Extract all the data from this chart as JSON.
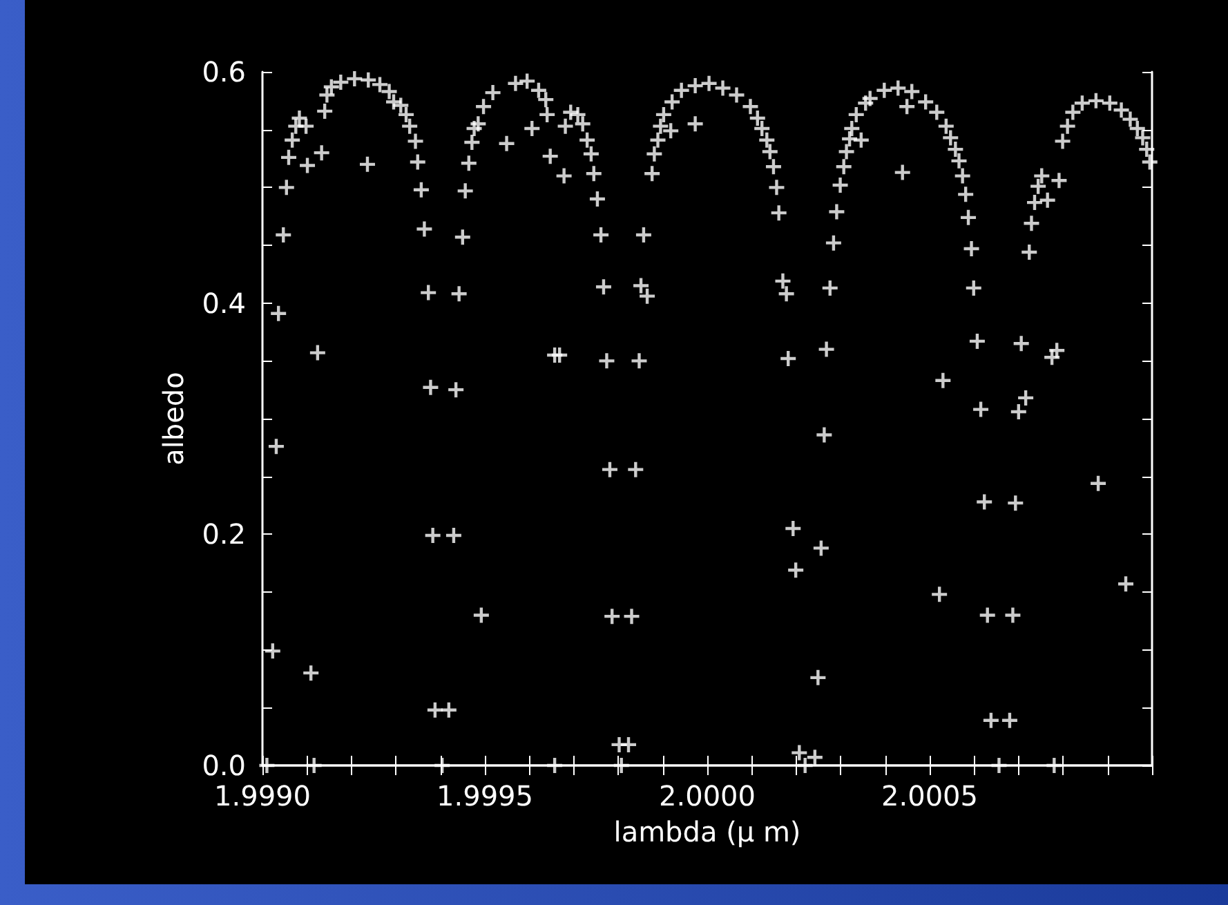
{
  "chart_data": {
    "type": "scatter",
    "xlabel": "lambda (μ m)",
    "ylabel": "albedo",
    "xlim": [
      1.999,
      2.001
    ],
    "ylim": [
      0,
      0.6
    ],
    "xticks": [
      {
        "value": 1.999,
        "label": "1.9990"
      },
      {
        "value": 1.9991,
        "label": null
      },
      {
        "value": 1.9992,
        "label": null
      },
      {
        "value": 1.9993,
        "label": null
      },
      {
        "value": 1.9994,
        "label": null
      },
      {
        "value": 1.9995,
        "label": "1.9995"
      },
      {
        "value": 1.9996,
        "label": null
      },
      {
        "value": 1.9997,
        "label": null
      },
      {
        "value": 1.9998,
        "label": null
      },
      {
        "value": 1.9999,
        "label": null
      },
      {
        "value": 2.0,
        "label": "2.0000"
      },
      {
        "value": 2.0001,
        "label": null
      },
      {
        "value": 2.0002,
        "label": null
      },
      {
        "value": 2.0003,
        "label": null
      },
      {
        "value": 2.0004,
        "label": null
      },
      {
        "value": 2.0005,
        "label": "2.0005"
      },
      {
        "value": 2.0006,
        "label": null
      },
      {
        "value": 2.0007,
        "label": null
      },
      {
        "value": 2.0008,
        "label": null
      },
      {
        "value": 2.0009,
        "label": null
      },
      {
        "value": 2.001,
        "label": null
      }
    ],
    "yticks": [
      {
        "value": 0,
        "label": "0.0"
      },
      {
        "value": 0.05,
        "label": null
      },
      {
        "value": 0.1,
        "label": null
      },
      {
        "value": 0.15,
        "label": null
      },
      {
        "value": 0.2,
        "label": "0.2"
      },
      {
        "value": 0.25,
        "label": null
      },
      {
        "value": 0.3,
        "label": null
      },
      {
        "value": 0.35,
        "label": null
      },
      {
        "value": 0.4,
        "label": "0.4"
      },
      {
        "value": 0.45,
        "label": null
      },
      {
        "value": 0.5,
        "label": null
      },
      {
        "value": 0.55,
        "label": null
      },
      {
        "value": 0.6,
        "label": "0.6"
      }
    ],
    "grid": false,
    "marker": "cross",
    "series": [
      {
        "color": "#ffffff",
        "x": [
          1.99901,
          1.999116,
          1.999023,
          1.999031,
          1.999036,
          1.999047,
          1.999054,
          1.999059,
          1.999067,
          1.999075,
          1.999083,
          1.999098,
          1.999101,
          1.999109,
          1.999124,
          1.999133,
          1.99914,
          1.999145,
          1.999155,
          1.999176,
          1.999207,
          1.999236,
          1.999238,
          1.999264,
          1.999285,
          1.999295,
          1.999311,
          1.999323,
          1.999331,
          1.999344,
          1.999349,
          1.999357,
          1.999364,
          1.999373,
          1.999378,
          1.999383,
          1.999388,
          1.999404,
          1.999419,
          1.99943,
          1.999435,
          1.999442,
          1.99945,
          1.999456,
          1.999464,
          1.999471,
          1.999476,
          1.999485,
          1.999492,
          1.999497,
          1.999518,
          1.999549,
          1.999569,
          1.999595,
          1.999606,
          1.999621,
          1.999637,
          1.99964,
          1.999647,
          1.999657,
          1.999657,
          1.999668,
          1.999678,
          1.999681,
          1.999693,
          1.999709,
          1.99972,
          1.99973,
          1.999739,
          1.999745,
          1.999753,
          1.999761,
          1.999767,
          1.999774,
          1.999781,
          1.999786,
          1.999802,
          1.999807,
          1.999823,
          1.99983,
          1.999839,
          1.999847,
          1.999851,
          1.999857,
          1.999865,
          1.999876,
          1.999881,
          1.999889,
          1.999895,
          1.999902,
          1.999918,
          1.999921,
          1.999942,
          1.999973,
          1.999973,
          2.000004,
          2.000035,
          2.000066,
          2.000097,
          2.000113,
          2.000123,
          2.000134,
          2.000141,
          2.000149,
          2.000156,
          2.000161,
          2.00017,
          2.000178,
          2.000182,
          2.000193,
          2.000199,
          2.000207,
          2.00022,
          2.000242,
          2.000249,
          2.000256,
          2.000263,
          2.000268,
          2.000276,
          2.000284,
          2.000291,
          2.000299,
          2.000307,
          2.000313,
          2.00032,
          2.000325,
          2.000335,
          2.000346,
          2.000356,
          2.000366,
          2.000398,
          2.000429,
          2.000439,
          2.000449,
          2.00046,
          2.000491,
          2.000516,
          2.000522,
          2.00053,
          2.000537,
          2.000547,
          2.000558,
          2.000566,
          2.000574,
          2.000581,
          2.000587,
          2.000594,
          2.000599,
          2.000607,
          2.000615,
          2.000623,
          2.00063,
          2.000638,
          2.000656,
          2.00068,
          2.000687,
          2.000693,
          2.0007,
          2.000706,
          2.000716,
          2.000724,
          2.000729,
          2.000736,
          2.000744,
          2.000752,
          2.000765,
          2.000775,
          2.00078,
          2.000786,
          2.000791,
          2.000799,
          2.00081,
          2.000822,
          2.000843,
          2.000874,
          2.000879,
          2.000905,
          2.000931,
          2.000941,
          2.000951,
          2.000967,
          2.000979,
          2.000988,
          2.000995
        ],
        "values": [
          0,
          0,
          0.099,
          0.276,
          0.391,
          0.459,
          0.5,
          0.526,
          0.541,
          0.553,
          0.56,
          0.553,
          0.519,
          0.08,
          0.357,
          0.53,
          0.566,
          0.58,
          0.587,
          0.591,
          0.594,
          0.52,
          0.593,
          0.589,
          0.583,
          0.574,
          0.571,
          0.563,
          0.553,
          0.54,
          0.522,
          0.498,
          0.464,
          0.409,
          0.327,
          0.199,
          0.048,
          0,
          0.048,
          0.199,
          0.325,
          0.408,
          0.457,
          0.497,
          0.521,
          0.539,
          0.551,
          0.555,
          0.13,
          0.57,
          0.582,
          0.538,
          0.59,
          0.592,
          0.551,
          0.584,
          0.576,
          0.563,
          0.527,
          0.355,
          0,
          0.355,
          0.51,
          0.553,
          0.565,
          0.563,
          0.555,
          0.541,
          0.529,
          0.512,
          0.49,
          0.459,
          0.414,
          0.35,
          0.256,
          0.129,
          0.018,
          0,
          0.018,
          0.129,
          0.256,
          0.35,
          0.415,
          0.459,
          0.406,
          0.512,
          0.529,
          0.541,
          0.553,
          0.563,
          0.549,
          0.574,
          0.584,
          0.555,
          0.588,
          0.59,
          0.586,
          0.58,
          0.57,
          0.56,
          0.551,
          0.541,
          0.531,
          0.518,
          0.5,
          0.478,
          0.419,
          0.408,
          0.352,
          0.205,
          0.169,
          0.011,
          0,
          0.007,
          0.076,
          0.188,
          0.286,
          0.36,
          0.413,
          0.452,
          0.479,
          0.502,
          0.518,
          0.531,
          0.542,
          0.551,
          0.563,
          0.541,
          0.573,
          0.577,
          0.584,
          0.586,
          0.513,
          0.57,
          0.583,
          0.574,
          0.565,
          0.148,
          0.333,
          0.553,
          0.543,
          0.533,
          0.523,
          0.51,
          0.494,
          0.474,
          0.447,
          0.413,
          0.367,
          0.308,
          0.228,
          0.13,
          0.039,
          0,
          0.039,
          0.13,
          0.227,
          0.306,
          0.365,
          0.318,
          0.444,
          0.469,
          0.487,
          0.501,
          0.51,
          0.489,
          0.353,
          0,
          0.359,
          0.506,
          0.54,
          0.553,
          0.565,
          0.573,
          0.575,
          0.244,
          0.573,
          0.567,
          0.157,
          0.559,
          0.551,
          0.543,
          0.533,
          0.522
        ]
      }
    ]
  }
}
